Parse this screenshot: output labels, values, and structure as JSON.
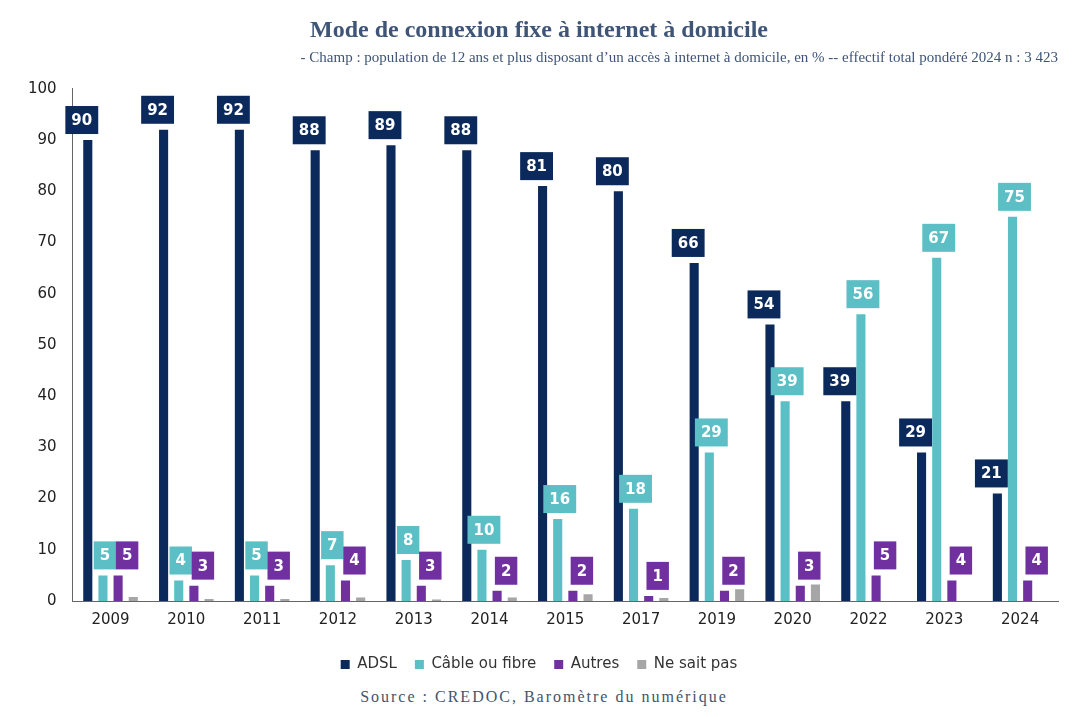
{
  "chart_data": {
    "type": "bar",
    "title": "Mode de connexion fixe à internet à domicile",
    "subtitle": "- Champ : population de 12 ans et plus disposant d’un accès à internet à domicile, en % -- effectif total pondéré 2024 n : 3 423",
    "source": "Source : CREDOC, Baromètre du numérique",
    "categories": [
      "2009",
      "2010",
      "2011",
      "2012",
      "2013",
      "2014",
      "2015",
      "2017",
      "2019",
      "2020",
      "2022",
      "2023",
      "2024"
    ],
    "series": [
      {
        "name": "ADSL",
        "color": "#0b2a5b",
        "data_labels": true,
        "values": [
          90,
          92,
          92,
          88,
          89,
          88,
          81,
          80,
          66,
          54,
          39,
          29,
          21
        ]
      },
      {
        "name": "Câble ou fibre",
        "color": "#5bbfc5",
        "data_labels": true,
        "values": [
          5,
          4,
          5,
          7,
          8,
          10,
          16,
          18,
          29,
          39,
          56,
          67,
          75
        ]
      },
      {
        "name": "Autres",
        "color": "#7030a0",
        "data_labels": true,
        "values": [
          5,
          3,
          3,
          4,
          3,
          2,
          2,
          1,
          2,
          3,
          5,
          4,
          4
        ]
      },
      {
        "name": "Ne sait pas",
        "color": "#a6a6a6",
        "data_labels": false,
        "values": [
          0.8,
          0.4,
          0.4,
          0.7,
          0.3,
          0.7,
          1.3,
          0.6,
          2.3,
          3.2,
          0,
          0,
          0
        ]
      }
    ],
    "ylim": [
      0,
      100
    ],
    "yticks": [
      0,
      10,
      20,
      30,
      40,
      50,
      60,
      70,
      80,
      90,
      100
    ],
    "grid": false,
    "legend": "bottom"
  }
}
